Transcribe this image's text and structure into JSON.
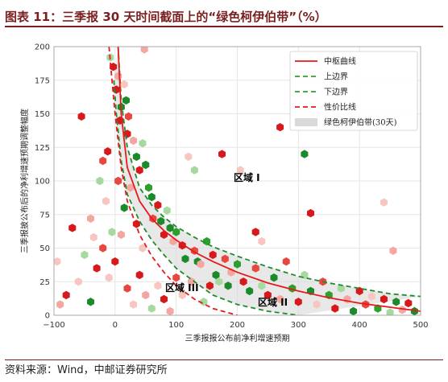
{
  "figure": {
    "title": "图表 11：三季报 30 天时间截面上的“绿色柯伊伯带”（%）",
    "source": "资料来源：Wind，中邮证券研究所"
  },
  "chart_data": {
    "type": "scatter",
    "xlabel": "三季报报公布前净利增速预期",
    "ylabel": "三季报披公布后的净利增速预期调整幅度",
    "xlim": [
      -100,
      500
    ],
    "ylim": [
      0,
      200
    ],
    "x_ticks": [
      "−100",
      "0",
      "100",
      "200",
      "300",
      "400",
      "500"
    ],
    "y_ticks": [
      "0",
      "25",
      "50",
      "75",
      "100",
      "125",
      "150",
      "175",
      "200"
    ],
    "grid": true,
    "legend_position": "top-right",
    "legend": [
      {
        "label": "中枢曲线",
        "style": "solid",
        "color": "#e41a1c"
      },
      {
        "label": "上边界",
        "style": "dashed",
        "color": "#2ca02c"
      },
      {
        "label": "下边界",
        "style": "dashed",
        "color": "#2ca02c"
      },
      {
        "label": "性价比线",
        "style": "dashed",
        "color": "#e41a1c"
      },
      {
        "label": "绿色柯伊伯带(30天)",
        "style": "band",
        "color": "#d9d9d9"
      }
    ],
    "annotations": [
      "区域 I",
      "区域 II",
      "区域 III"
    ],
    "curves": {
      "center": {
        "x": [
          5,
          10,
          20,
          40,
          60,
          80,
          100,
          130,
          160,
          200,
          250,
          300,
          350,
          400,
          450,
          500
        ],
        "y": [
          200,
          150,
          110,
          85,
          72,
          63,
          56,
          47,
          40,
          32,
          24,
          18,
          13,
          9,
          6,
          3
        ]
      },
      "upper": {
        "x": [
          5,
          10,
          20,
          40,
          60,
          80,
          100,
          130,
          160,
          200,
          250,
          300,
          350,
          400,
          450,
          500
        ],
        "y": [
          200,
          160,
          125,
          95,
          82,
          73,
          66,
          58,
          51,
          44,
          36,
          29,
          24,
          20,
          16,
          14
        ]
      },
      "lower": {
        "x": [
          -2,
          2,
          10,
          20,
          40,
          60,
          80,
          100,
          130,
          160,
          200,
          250,
          300
        ],
        "y": [
          175,
          150,
          115,
          90,
          70,
          56,
          45,
          35,
          25,
          15,
          8,
          3,
          0
        ]
      },
      "value_line": {
        "x": [
          -10,
          -5,
          0,
          10,
          20,
          40,
          60,
          80,
          100,
          130,
          160,
          200
        ],
        "y": [
          200,
          175,
          150,
          110,
          85,
          60,
          44,
          32,
          22,
          12,
          5,
          0
        ]
      }
    },
    "scatter": [
      {
        "x": -55,
        "y": 148,
        "c": "#d7191c"
      },
      {
        "x": -20,
        "y": 115,
        "c": "#e8473f"
      },
      {
        "x": -12,
        "y": 122,
        "c": "#d7191c"
      },
      {
        "x": -8,
        "y": 192,
        "c": "#a6d9a0"
      },
      {
        "x": -3,
        "y": 185,
        "c": "#d7191c"
      },
      {
        "x": 2,
        "y": 168,
        "c": "#d7191c"
      },
      {
        "x": 5,
        "y": 178,
        "c": "#f4a6a0"
      },
      {
        "x": 8,
        "y": 145,
        "c": "#d7191c"
      },
      {
        "x": 10,
        "y": 155,
        "c": "#1a8a2a"
      },
      {
        "x": 15,
        "y": 172,
        "c": "#f8c6c1"
      },
      {
        "x": 18,
        "y": 160,
        "c": "#1a8a2a"
      },
      {
        "x": 20,
        "y": 135,
        "c": "#d7191c"
      },
      {
        "x": 22,
        "y": 148,
        "c": "#e8473f"
      },
      {
        "x": 30,
        "y": 130,
        "c": "#f4a6a0"
      },
      {
        "x": 35,
        "y": 118,
        "c": "#1a8a2a"
      },
      {
        "x": 40,
        "y": 108,
        "c": "#d7191c"
      },
      {
        "x": 45,
        "y": 128,
        "c": "#a6d9a0"
      },
      {
        "x": 50,
        "y": 112,
        "c": "#1a8a2a"
      },
      {
        "x": 48,
        "y": 198,
        "c": "#f4a6a0"
      },
      {
        "x": 55,
        "y": 95,
        "c": "#2ca02c"
      },
      {
        "x": 60,
        "y": 88,
        "c": "#1a8a2a"
      },
      {
        "x": 62,
        "y": 72,
        "c": "#e8473f"
      },
      {
        "x": 70,
        "y": 82,
        "c": "#d7191c"
      },
      {
        "x": 75,
        "y": 70,
        "c": "#1a8a2a"
      },
      {
        "x": 80,
        "y": 60,
        "c": "#d7191c"
      },
      {
        "x": 85,
        "y": 78,
        "c": "#a6d9a0"
      },
      {
        "x": 90,
        "y": 65,
        "c": "#1a8a2a"
      },
      {
        "x": 95,
        "y": 55,
        "c": "#f4a6a0"
      },
      {
        "x": 100,
        "y": 62,
        "c": "#2ca02c"
      },
      {
        "x": 110,
        "y": 52,
        "c": "#d7191c"
      },
      {
        "x": 115,
        "y": 42,
        "c": "#1a8a2a"
      },
      {
        "x": 120,
        "y": 118,
        "c": "#f8c6c1"
      },
      {
        "x": 130,
        "y": 48,
        "c": "#e8473f"
      },
      {
        "x": 135,
        "y": 40,
        "c": "#1a8a2a"
      },
      {
        "x": 140,
        "y": 38,
        "c": "#f4a6a0"
      },
      {
        "x": 150,
        "y": 55,
        "c": "#2ca02c"
      },
      {
        "x": 160,
        "y": 45,
        "c": "#d7191c"
      },
      {
        "x": 165,
        "y": 30,
        "c": "#1a8a2a"
      },
      {
        "x": 170,
        "y": 25,
        "c": "#a6d9a0"
      },
      {
        "x": 175,
        "y": 120,
        "c": "#d7191c"
      },
      {
        "x": 180,
        "y": 42,
        "c": "#e8473f"
      },
      {
        "x": 185,
        "y": 22,
        "c": "#1a8a2a"
      },
      {
        "x": 190,
        "y": 32,
        "c": "#f4a6a0"
      },
      {
        "x": 200,
        "y": 38,
        "c": "#2ca02c"
      },
      {
        "x": 205,
        "y": 108,
        "c": "#f8c6c1"
      },
      {
        "x": 210,
        "y": 25,
        "c": "#d7191c"
      },
      {
        "x": 220,
        "y": 18,
        "c": "#1a8a2a"
      },
      {
        "x": 230,
        "y": 35,
        "c": "#e8473f"
      },
      {
        "x": 240,
        "y": 22,
        "c": "#a6d9a0"
      },
      {
        "x": 250,
        "y": 15,
        "c": "#d7191c"
      },
      {
        "x": 260,
        "y": 28,
        "c": "#1a8a2a"
      },
      {
        "x": 270,
        "y": 12,
        "c": "#f4a6a0"
      },
      {
        "x": 280,
        "y": 40,
        "c": "#e8473f"
      },
      {
        "x": 290,
        "y": 20,
        "c": "#2ca02c"
      },
      {
        "x": 300,
        "y": 10,
        "c": "#d7191c"
      },
      {
        "x": 310,
        "y": 30,
        "c": "#a6d9a0"
      },
      {
        "x": 320,
        "y": 18,
        "c": "#1a8a2a"
      },
      {
        "x": 330,
        "y": 8,
        "c": "#f8c6c1"
      },
      {
        "x": 340,
        "y": 25,
        "c": "#e8473f"
      },
      {
        "x": 350,
        "y": 15,
        "c": "#2ca02c"
      },
      {
        "x": 360,
        "y": 5,
        "c": "#d7191c"
      },
      {
        "x": 370,
        "y": 20,
        "c": "#a6d9a0"
      },
      {
        "x": 380,
        "y": 12,
        "c": "#f4a6a0"
      },
      {
        "x": 390,
        "y": 3,
        "c": "#1a8a2a"
      },
      {
        "x": 400,
        "y": 18,
        "c": "#d7191c"
      },
      {
        "x": 410,
        "y": 8,
        "c": "#e8473f"
      },
      {
        "x": 420,
        "y": 14,
        "c": "#f8c6c1"
      },
      {
        "x": 430,
        "y": 5,
        "c": "#2ca02c"
      },
      {
        "x": 440,
        "y": 12,
        "c": "#d7191c"
      },
      {
        "x": 450,
        "y": 2,
        "c": "#a6d9a0"
      },
      {
        "x": 460,
        "y": 10,
        "c": "#1a8a2a"
      },
      {
        "x": 470,
        "y": 4,
        "c": "#f4a6a0"
      },
      {
        "x": 480,
        "y": 9,
        "c": "#d7191c"
      },
      {
        "x": 490,
        "y": 3,
        "c": "#1a8a2a"
      },
      {
        "x": 230,
        "y": 62,
        "c": "#d7191c"
      },
      {
        "x": 270,
        "y": 140,
        "c": "#d7191c"
      },
      {
        "x": 310,
        "y": 120,
        "c": "#1a8a2a"
      },
      {
        "x": 320,
        "y": 76,
        "c": "#d7191c"
      },
      {
        "x": 440,
        "y": 84,
        "c": "#f8c6c1"
      },
      {
        "x": 455,
        "y": 48,
        "c": "#f4a6a0"
      },
      {
        "x": 240,
        "y": 55,
        "c": "#f8c6c1"
      },
      {
        "x": 130,
        "y": 108,
        "c": "#a6d9a0"
      },
      {
        "x": -40,
        "y": 72,
        "c": "#f4a6a0"
      },
      {
        "x": -70,
        "y": 65,
        "c": "#d7191c"
      },
      {
        "x": -50,
        "y": 45,
        "c": "#a6d9a0"
      },
      {
        "x": -30,
        "y": 35,
        "c": "#d7191c"
      },
      {
        "x": -60,
        "y": 25,
        "c": "#f8c6c1"
      },
      {
        "x": -80,
        "y": 15,
        "c": "#d7191c"
      },
      {
        "x": -90,
        "y": 8,
        "c": "#f4a6a0"
      },
      {
        "x": -40,
        "y": 10,
        "c": "#1a8a2a"
      },
      {
        "x": -20,
        "y": 50,
        "c": "#e8473f"
      },
      {
        "x": -10,
        "y": 28,
        "c": "#f8c6c1"
      },
      {
        "x": 0,
        "y": 40,
        "c": "#d7191c"
      },
      {
        "x": 10,
        "y": 60,
        "c": "#f4a6a0"
      },
      {
        "x": 20,
        "y": 20,
        "c": "#e8473f"
      },
      {
        "x": 30,
        "y": 8,
        "c": "#f8c6c1"
      },
      {
        "x": 40,
        "y": 30,
        "c": "#d7191c"
      },
      {
        "x": 50,
        "y": 15,
        "c": "#f4a6a0"
      },
      {
        "x": 60,
        "y": 5,
        "c": "#a6d9a0"
      },
      {
        "x": 70,
        "y": 22,
        "c": "#f8c6c1"
      },
      {
        "x": 80,
        "y": 12,
        "c": "#d7191c"
      },
      {
        "x": 90,
        "y": 3,
        "c": "#f4a6a0"
      },
      {
        "x": -15,
        "y": 85,
        "c": "#f8c6c1"
      },
      {
        "x": -25,
        "y": 100,
        "c": "#a6d9a0"
      },
      {
        "x": 25,
        "y": 95,
        "c": "#f4a6a0"
      },
      {
        "x": 15,
        "y": 80,
        "c": "#1a8a2a"
      },
      {
        "x": 35,
        "y": 68,
        "c": "#d7191c"
      },
      {
        "x": 45,
        "y": 50,
        "c": "#f8c6c1"
      },
      {
        "x": 5,
        "y": 100,
        "c": "#e8473f"
      },
      {
        "x": -5,
        "y": 62,
        "c": "#a6d9a0"
      },
      {
        "x": -35,
        "y": 58,
        "c": "#f8c6c1"
      },
      {
        "x": 110,
        "y": 15,
        "c": "#f8c6c1"
      },
      {
        "x": 125,
        "y": 25,
        "c": "#f4a6a0"
      },
      {
        "x": 145,
        "y": 10,
        "c": "#a6d9a0"
      },
      {
        "x": 155,
        "y": 22,
        "c": "#d7191c"
      },
      {
        "x": 100,
        "y": 28,
        "c": "#e8473f"
      },
      {
        "x": -95,
        "y": 40,
        "c": "#f8c6c1"
      }
    ]
  }
}
